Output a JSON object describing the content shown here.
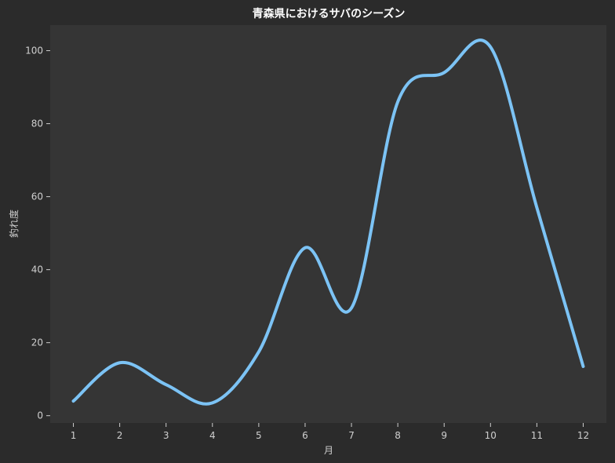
{
  "chart_data": {
    "type": "line",
    "title": "青森県におけるサバのシーズン",
    "xlabel": "月",
    "ylabel": "釣れ度",
    "x": [
      1,
      2,
      3,
      4,
      5,
      6,
      7,
      8,
      9,
      10,
      11,
      12
    ],
    "series": [
      {
        "values": [
          4,
          14.5,
          8.5,
          3.5,
          17.5,
          46,
          29.5,
          86,
          94,
          101,
          57,
          13.5
        ]
      }
    ],
    "xlim": [
      0.5,
      12.5
    ],
    "ylim": [
      -2,
      107
    ],
    "xticks": [
      1,
      2,
      3,
      4,
      5,
      6,
      7,
      8,
      9,
      10,
      11,
      12
    ],
    "yticks": [
      0,
      20,
      40,
      60,
      80,
      100
    ],
    "grid": false,
    "colors": {
      "figure_bg": "#2b2b2b",
      "plot_bg": "#353535",
      "line": "#7cc3f5",
      "text": "#cfcfcf",
      "title": "#ffffff"
    }
  }
}
